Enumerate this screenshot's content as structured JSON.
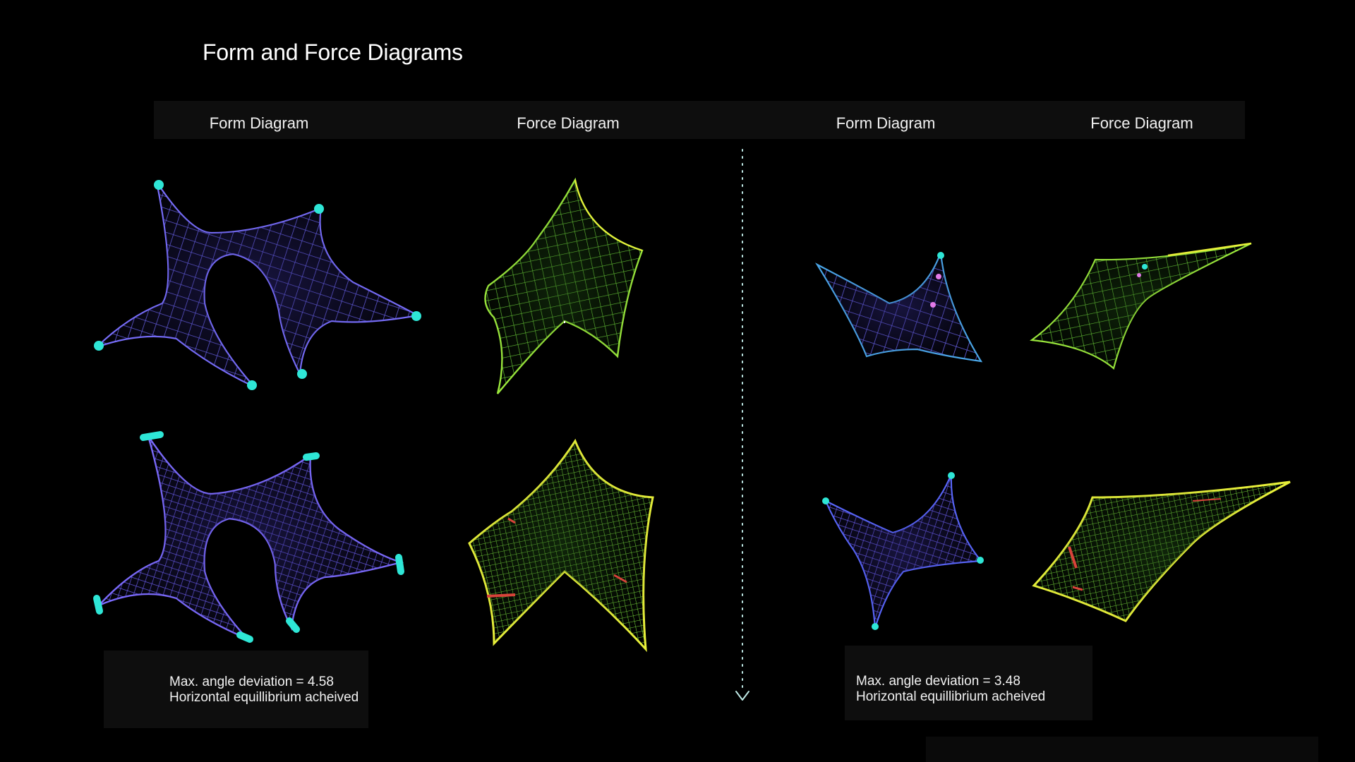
{
  "title": "Form and Force Diagrams",
  "column_labels": [
    "Form Diagram",
    "Force Diagram",
    "Form Diagram",
    "Force Diagram"
  ],
  "info": {
    "left": {
      "deviation": "Max. angle deviation = 4.58",
      "equilibrium": "Horizontal equillibrium acheived"
    },
    "right": {
      "deviation": "Max. angle deviation = 3.48",
      "equilibrium": "Horizontal equillibrium acheived"
    }
  },
  "colors": {
    "form_mesh": "#6a63e8",
    "form_supports": "#2ee6d6",
    "force_mesh": "#7ee83a",
    "force_edge": "#e8f03a",
    "stress_marks": "#d8433a",
    "divider": "#bfe9e6"
  }
}
